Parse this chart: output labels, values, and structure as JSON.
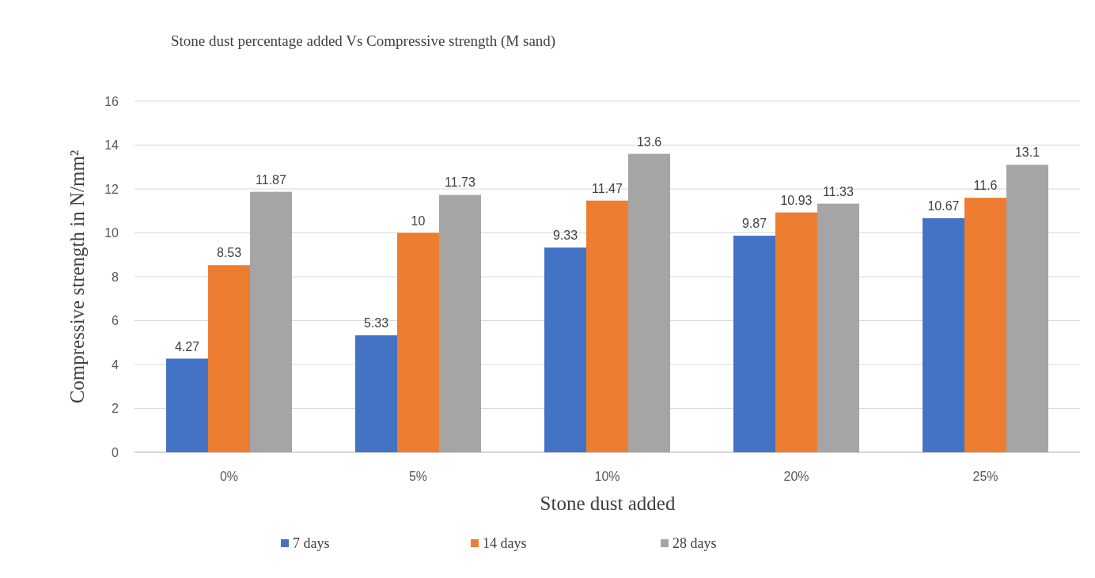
{
  "chart_data": {
    "type": "bar",
    "title": "Stone dust percentage added Vs Compressive strength (M sand)",
    "xlabel": "Stone dust added",
    "ylabel": "Compressive strength in N/mm²",
    "categories": [
      "0%",
      "5%",
      "10%",
      "20%",
      "25%"
    ],
    "series": [
      {
        "name": "7 days",
        "color": "#4472c4",
        "values": [
          4.27,
          5.33,
          9.33,
          9.87,
          10.67
        ]
      },
      {
        "name": "14 days",
        "color": "#ed7d31",
        "values": [
          8.53,
          10,
          11.47,
          10.93,
          11.6
        ]
      },
      {
        "name": "28 days",
        "color": "#a5a5a5",
        "values": [
          11.87,
          11.73,
          13.6,
          11.33,
          13.1
        ]
      }
    ],
    "ylim": [
      0,
      16
    ],
    "yticks": [
      0,
      2,
      4,
      6,
      8,
      10,
      12,
      14,
      16
    ],
    "grid": "y",
    "legend": "bottom",
    "data_labels": true
  }
}
